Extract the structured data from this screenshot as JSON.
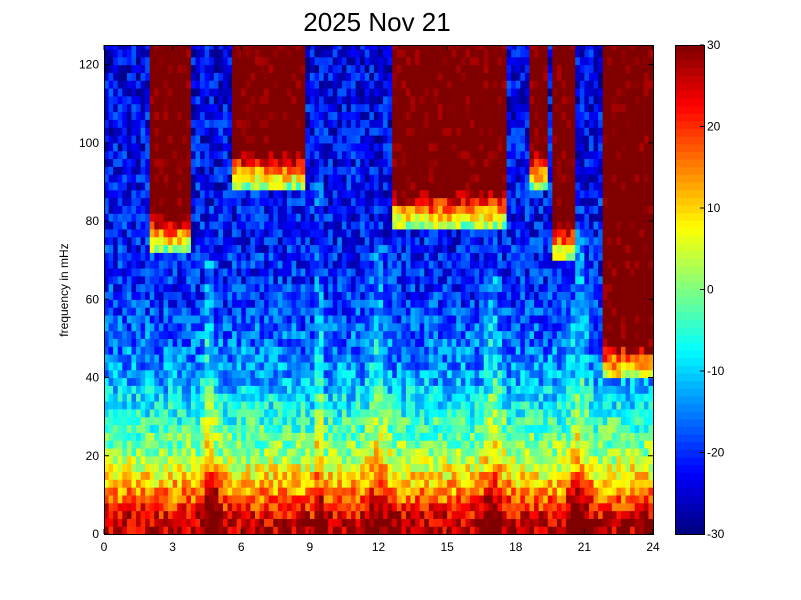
{
  "chart_data": {
    "type": "heatmap",
    "title": "2025 Nov 21",
    "xlabel": "",
    "ylabel": "frequency in mHz",
    "xlim": [
      0,
      24
    ],
    "ylim": [
      0,
      125
    ],
    "x_ticks": [
      0,
      3,
      6,
      9,
      12,
      15,
      18,
      21,
      24
    ],
    "y_ticks": [
      0,
      20,
      40,
      60,
      80,
      100,
      120
    ],
    "x_tick_labels": [
      "0",
      "3",
      "6",
      "9",
      "12",
      "15",
      "18",
      "21",
      "24"
    ],
    "y_tick_labels": [
      "0",
      "20",
      "40",
      "60",
      "80",
      "100",
      "120"
    ],
    "colorbar": {
      "min": -30,
      "max": 30,
      "ticks": [
        30,
        20,
        10,
        0,
        -10,
        -20,
        -30
      ],
      "tick_labels": [
        "30",
        "20",
        "10",
        "0",
        "-10",
        "-20",
        "-30"
      ],
      "colormap": "jet"
    },
    "grid": false,
    "value_model": {
      "description_units": "dB",
      "grid_hours_step": 0.2,
      "grid_freq_step_mhz": 2,
      "background_level_by_freq": [
        {
          "f": 0,
          "v": 27
        },
        {
          "f": 4,
          "v": 25
        },
        {
          "f": 10,
          "v": 15
        },
        {
          "f": 20,
          "v": 2
        },
        {
          "f": 40,
          "v": -13
        },
        {
          "f": 60,
          "v": -20
        },
        {
          "f": 80,
          "v": -22
        },
        {
          "f": 125,
          "v": -24
        }
      ],
      "high_power_zones": [
        {
          "x0": 2.0,
          "x1": 3.8,
          "f_min": 72
        },
        {
          "x0": 5.6,
          "x1": 8.8,
          "f_min": 88
        },
        {
          "x0": 12.6,
          "x1": 17.6,
          "f_min": 78
        },
        {
          "x0": 18.6,
          "x1": 19.4,
          "f_min": 88
        },
        {
          "x0": 19.6,
          "x1": 20.6,
          "f_min": 70
        },
        {
          "x0": 21.8,
          "x1": 24.0,
          "f_min": 40
        }
      ],
      "bursts": [
        {
          "x": 4.6,
          "width": 0.6,
          "height": 70,
          "boost": 10
        },
        {
          "x": 9.4,
          "width": 0.25,
          "height": 125,
          "boost": 12
        },
        {
          "x": 12.0,
          "width": 0.9,
          "height": 75,
          "boost": 8
        },
        {
          "x": 17.0,
          "width": 0.9,
          "height": 65,
          "boost": 8
        },
        {
          "x": 20.8,
          "width": 0.8,
          "height": 80,
          "boost": 9
        }
      ],
      "low_band_peaks": [
        {
          "x": 4.9,
          "width": 0.5,
          "boost": 8
        },
        {
          "x": 16.9,
          "width": 0.5,
          "boost": 6
        },
        {
          "x": 20.7,
          "width": 0.6,
          "boost": 7
        }
      ]
    }
  }
}
